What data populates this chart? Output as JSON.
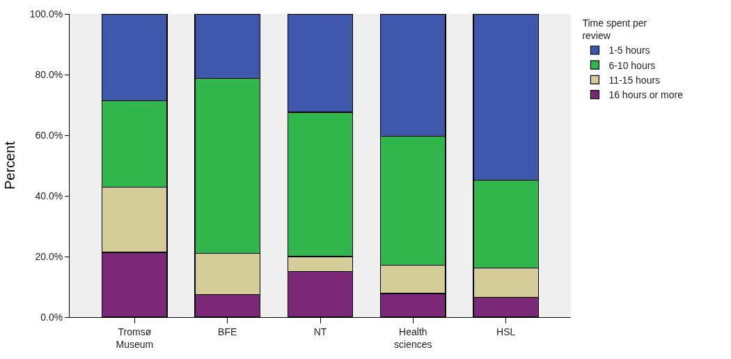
{
  "chart_data": {
    "type": "bar",
    "stacked": true,
    "ylabel": "Percent",
    "legend_title": "Time spent per\nreview",
    "legend": "right",
    "grid": false,
    "categories": [
      "Tromsø\nMuseum",
      "BFE",
      "NT",
      "Health\nsciences",
      "HSL"
    ],
    "ylim": [
      0,
      100
    ],
    "yticks": [
      {
        "value": 0,
        "label": "0.0%"
      },
      {
        "value": 20,
        "label": "20.0%"
      },
      {
        "value": 40,
        "label": "40.0%"
      },
      {
        "value": 60,
        "label": "60.0%"
      },
      {
        "value": 80,
        "label": "80.0%"
      },
      {
        "value": 100,
        "label": "100.0%"
      }
    ],
    "series": [
      {
        "name": "16 hours or more",
        "color": "#7b2878",
        "values": [
          21.4,
          7.4,
          15.0,
          7.8,
          6.6
        ]
      },
      {
        "name": "11-15 hours",
        "color": "#d4cd97",
        "values": [
          21.4,
          13.6,
          5.0,
          9.3,
          9.6
        ]
      },
      {
        "name": "6-10 hours",
        "color": "#30b64b",
        "values": [
          28.6,
          57.8,
          47.6,
          42.6,
          28.9
        ]
      },
      {
        "name": "1-5 hours",
        "color": "#3d57aa",
        "values": [
          28.6,
          21.2,
          32.4,
          40.3,
          54.9
        ]
      }
    ]
  }
}
